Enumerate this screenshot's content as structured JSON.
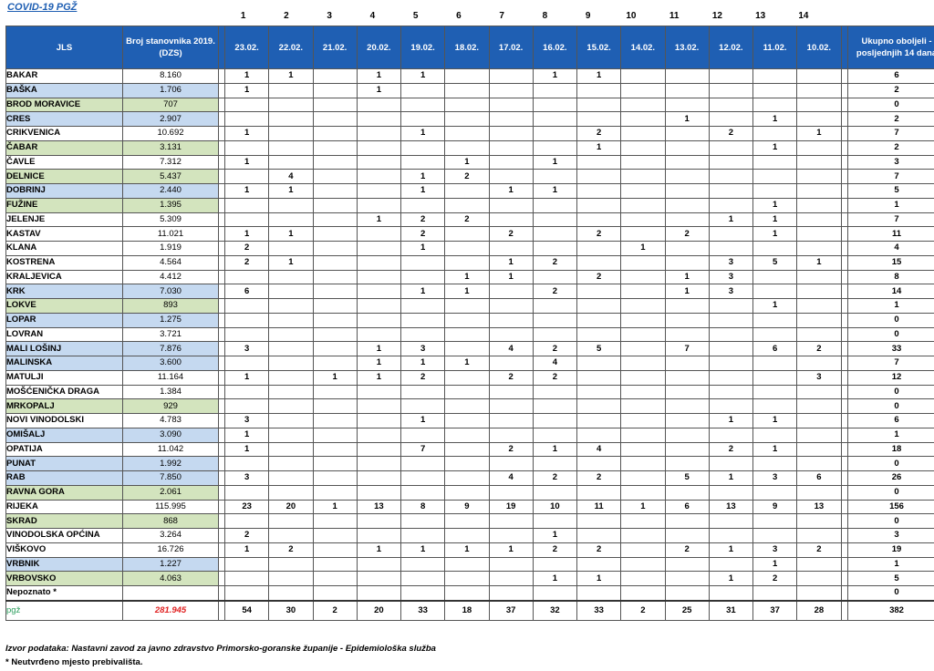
{
  "title": "COVID-19  PGŽ",
  "col_numbers": [
    "1",
    "2",
    "3",
    "4",
    "5",
    "6",
    "7",
    "8",
    "9",
    "10",
    "11",
    "12",
    "13",
    "14"
  ],
  "header": {
    "jls": "JLS",
    "population": "Broj stanovnika 2019. (DZS)",
    "dates": [
      "23.02.",
      "22.02.",
      "21.02.",
      "20.02.",
      "19.02.",
      "18.02.",
      "17.02.",
      "16.02.",
      "15.02.",
      "14.02.",
      "13.02.",
      "12.02.",
      "11.02.",
      "10.02."
    ],
    "total": "Ukupno oboljeli - posljednjih 14 dana"
  },
  "rows": [
    {
      "name": "BAKAR",
      "pop": "8.160",
      "c": "white",
      "v": [
        "1",
        "1",
        "",
        "1",
        "1",
        "",
        "",
        "1",
        "1",
        "",
        "",
        "",
        "",
        ""
      ],
      "t": "6"
    },
    {
      "name": "BAŠKA",
      "pop": "1.706",
      "c": "blue",
      "v": [
        "1",
        "",
        "",
        "1",
        "",
        "",
        "",
        "",
        "",
        "",
        "",
        "",
        "",
        ""
      ],
      "t": "2"
    },
    {
      "name": "BROD MORAVICE",
      "pop": "707",
      "c": "green",
      "v": [
        "",
        "",
        "",
        "",
        "",
        "",
        "",
        "",
        "",
        "",
        "",
        "",
        "",
        ""
      ],
      "t": "0"
    },
    {
      "name": "CRES",
      "pop": "2.907",
      "c": "blue",
      "v": [
        "",
        "",
        "",
        "",
        "",
        "",
        "",
        "",
        "",
        "",
        "1",
        "",
        "1",
        ""
      ],
      "t": "2"
    },
    {
      "name": "CRIKVENICA",
      "pop": "10.692",
      "c": "white",
      "v": [
        "1",
        "",
        "",
        "",
        "1",
        "",
        "",
        "",
        "2",
        "",
        "",
        "2",
        "",
        "1"
      ],
      "t": "7"
    },
    {
      "name": "ČABAR",
      "pop": "3.131",
      "c": "green",
      "v": [
        "",
        "",
        "",
        "",
        "",
        "",
        "",
        "",
        "1",
        "",
        "",
        "",
        "1",
        ""
      ],
      "t": "2"
    },
    {
      "name": "ČAVLE",
      "pop": "7.312",
      "c": "white",
      "v": [
        "1",
        "",
        "",
        "",
        "",
        "1",
        "",
        "1",
        "",
        "",
        "",
        "",
        "",
        ""
      ],
      "t": "3"
    },
    {
      "name": "DELNICE",
      "pop": "5.437",
      "c": "green",
      "v": [
        "",
        "4",
        "",
        "",
        "1",
        "2",
        "",
        "",
        "",
        "",
        "",
        "",
        "",
        ""
      ],
      "t": "7"
    },
    {
      "name": "DOBRINJ",
      "pop": "2.440",
      "c": "blue",
      "v": [
        "1",
        "1",
        "",
        "",
        "1",
        "",
        "1",
        "1",
        "",
        "",
        "",
        "",
        "",
        ""
      ],
      "t": "5"
    },
    {
      "name": "FUŽINE",
      "pop": "1.395",
      "c": "green",
      "v": [
        "",
        "",
        "",
        "",
        "",
        "",
        "",
        "",
        "",
        "",
        "",
        "",
        "1",
        ""
      ],
      "t": "1"
    },
    {
      "name": "JELENJE",
      "pop": "5.309",
      "c": "white",
      "v": [
        "",
        "",
        "",
        "1",
        "2",
        "2",
        "",
        "",
        "",
        "",
        "",
        "1",
        "1",
        ""
      ],
      "t": "7"
    },
    {
      "name": "KASTAV",
      "pop": "11.021",
      "c": "white",
      "v": [
        "1",
        "1",
        "",
        "",
        "2",
        "",
        "2",
        "",
        "2",
        "",
        "2",
        "",
        "1",
        ""
      ],
      "t": "11"
    },
    {
      "name": "KLANA",
      "pop": "1.919",
      "c": "white",
      "v": [
        "2",
        "",
        "",
        "",
        "1",
        "",
        "",
        "",
        "",
        "1",
        "",
        "",
        "",
        ""
      ],
      "t": "4"
    },
    {
      "name": "KOSTRENA",
      "pop": "4.564",
      "c": "white",
      "v": [
        "2",
        "1",
        "",
        "",
        "",
        "",
        "1",
        "2",
        "",
        "",
        "",
        "3",
        "5",
        "1"
      ],
      "t": "15"
    },
    {
      "name": "KRALJEVICA",
      "pop": "4.412",
      "c": "white",
      "v": [
        "",
        "",
        "",
        "",
        "",
        "1",
        "1",
        "",
        "2",
        "",
        "1",
        "3",
        "",
        ""
      ],
      "t": "8"
    },
    {
      "name": "KRK",
      "pop": "7.030",
      "c": "blue",
      "v": [
        "6",
        "",
        "",
        "",
        "1",
        "1",
        "",
        "2",
        "",
        "",
        "1",
        "3",
        "",
        ""
      ],
      "t": "14"
    },
    {
      "name": "LOKVE",
      "pop": "893",
      "c": "green",
      "v": [
        "",
        "",
        "",
        "",
        "",
        "",
        "",
        "",
        "",
        "",
        "",
        "",
        "1",
        ""
      ],
      "t": "1"
    },
    {
      "name": "LOPAR",
      "pop": "1.275",
      "c": "blue",
      "v": [
        "",
        "",
        "",
        "",
        "",
        "",
        "",
        "",
        "",
        "",
        "",
        "",
        "",
        ""
      ],
      "t": "0"
    },
    {
      "name": "LOVRAN",
      "pop": "3.721",
      "c": "white",
      "v": [
        "",
        "",
        "",
        "",
        "",
        "",
        "",
        "",
        "",
        "",
        "",
        "",
        "",
        ""
      ],
      "t": "0"
    },
    {
      "name": "MALI LOŠINJ",
      "pop": "7.876",
      "c": "blue",
      "v": [
        "3",
        "",
        "",
        "1",
        "3",
        "",
        "4",
        "2",
        "5",
        "",
        "7",
        "",
        "6",
        "2"
      ],
      "t": "33"
    },
    {
      "name": "MALINSKA",
      "pop": "3.600",
      "c": "blue",
      "v": [
        "",
        "",
        "",
        "1",
        "1",
        "1",
        "",
        "4",
        "",
        "",
        "",
        "",
        "",
        ""
      ],
      "t": "7"
    },
    {
      "name": "MATULJI",
      "pop": "11.164",
      "c": "white",
      "v": [
        "1",
        "",
        "1",
        "1",
        "2",
        "",
        "2",
        "2",
        "",
        "",
        "",
        "",
        "",
        "3"
      ],
      "t": "12"
    },
    {
      "name": "MOŠĆENIČKA DRAGA",
      "pop": "1.384",
      "c": "white",
      "v": [
        "",
        "",
        "",
        "",
        "",
        "",
        "",
        "",
        "",
        "",
        "",
        "",
        "",
        ""
      ],
      "t": "0"
    },
    {
      "name": "MRKOPALJ",
      "pop": "929",
      "c": "green",
      "v": [
        "",
        "",
        "",
        "",
        "",
        "",
        "",
        "",
        "",
        "",
        "",
        "",
        "",
        ""
      ],
      "t": "0"
    },
    {
      "name": "NOVI VINODOLSKI",
      "pop": "4.783",
      "c": "white",
      "v": [
        "3",
        "",
        "",
        "",
        "1",
        "",
        "",
        "",
        "",
        "",
        "",
        "1",
        "1",
        ""
      ],
      "t": "6"
    },
    {
      "name": "OMIŠALJ",
      "pop": "3.090",
      "c": "blue",
      "v": [
        "1",
        "",
        "",
        "",
        "",
        "",
        "",
        "",
        "",
        "",
        "",
        "",
        "",
        ""
      ],
      "t": "1"
    },
    {
      "name": "OPATIJA",
      "pop": "11.042",
      "c": "white",
      "v": [
        "1",
        "",
        "",
        "",
        "7",
        "",
        "2",
        "1",
        "4",
        "",
        "",
        "2",
        "1",
        ""
      ],
      "t": "18"
    },
    {
      "name": "PUNAT",
      "pop": "1.992",
      "c": "blue",
      "v": [
        "",
        "",
        "",
        "",
        "",
        "",
        "",
        "",
        "",
        "",
        "",
        "",
        "",
        ""
      ],
      "t": "0"
    },
    {
      "name": "RAB",
      "pop": "7.850",
      "c": "blue",
      "v": [
        "3",
        "",
        "",
        "",
        "",
        "",
        "4",
        "2",
        "2",
        "",
        "5",
        "1",
        "3",
        "6"
      ],
      "t": "26"
    },
    {
      "name": "RAVNA GORA",
      "pop": "2.061",
      "c": "green",
      "v": [
        "",
        "",
        "",
        "",
        "",
        "",
        "",
        "",
        "",
        "",
        "",
        "",
        "",
        ""
      ],
      "t": "0"
    },
    {
      "name": "RIJEKA",
      "pop": "115.995",
      "c": "white",
      "v": [
        "23",
        "20",
        "1",
        "13",
        "8",
        "9",
        "19",
        "10",
        "11",
        "1",
        "6",
        "13",
        "9",
        "13"
      ],
      "t": "156"
    },
    {
      "name": "SKRAD",
      "pop": "868",
      "c": "green",
      "v": [
        "",
        "",
        "",
        "",
        "",
        "",
        "",
        "",
        "",
        "",
        "",
        "",
        "",
        ""
      ],
      "t": "0"
    },
    {
      "name": "VINODOLSKA OPĆINA",
      "pop": "3.264",
      "c": "white",
      "v": [
        "2",
        "",
        "",
        "",
        "",
        "",
        "",
        "1",
        "",
        "",
        "",
        "",
        "",
        ""
      ],
      "t": "3"
    },
    {
      "name": "VIŠKOVO",
      "pop": "16.726",
      "c": "white",
      "v": [
        "1",
        "2",
        "",
        "1",
        "1",
        "1",
        "1",
        "2",
        "2",
        "",
        "2",
        "1",
        "3",
        "2"
      ],
      "t": "19"
    },
    {
      "name": "VRBNIK",
      "pop": "1.227",
      "c": "blue",
      "v": [
        "",
        "",
        "",
        "",
        "",
        "",
        "",
        "",
        "",
        "",
        "",
        "",
        "1",
        ""
      ],
      "t": "1"
    },
    {
      "name": "VRBOVSKO",
      "pop": "4.063",
      "c": "green",
      "v": [
        "",
        "",
        "",
        "",
        "",
        "",
        "",
        "1",
        "1",
        "",
        "",
        "1",
        "2",
        ""
      ],
      "t": "5"
    },
    {
      "name": "Nepoznato *",
      "pop": "",
      "c": "white",
      "v": [
        "",
        "",
        "",
        "",
        "",
        "",
        "",
        "",
        "",
        "",
        "",
        "",
        "",
        ""
      ],
      "t": "0"
    }
  ],
  "sum": {
    "name": "pgž",
    "pop": "281.945",
    "v": [
      "54",
      "30",
      "2",
      "20",
      "33",
      "18",
      "37",
      "32",
      "33",
      "2",
      "25",
      "31",
      "37",
      "28"
    ],
    "t": "382"
  },
  "footer": {
    "source": "Izvor podataka: Nastavni zavod za javno zdravstvo Primorsko-goranske županije  - Epidemiološka služba",
    "note": "* Neutvrđeno mjesto prebivališta."
  }
}
